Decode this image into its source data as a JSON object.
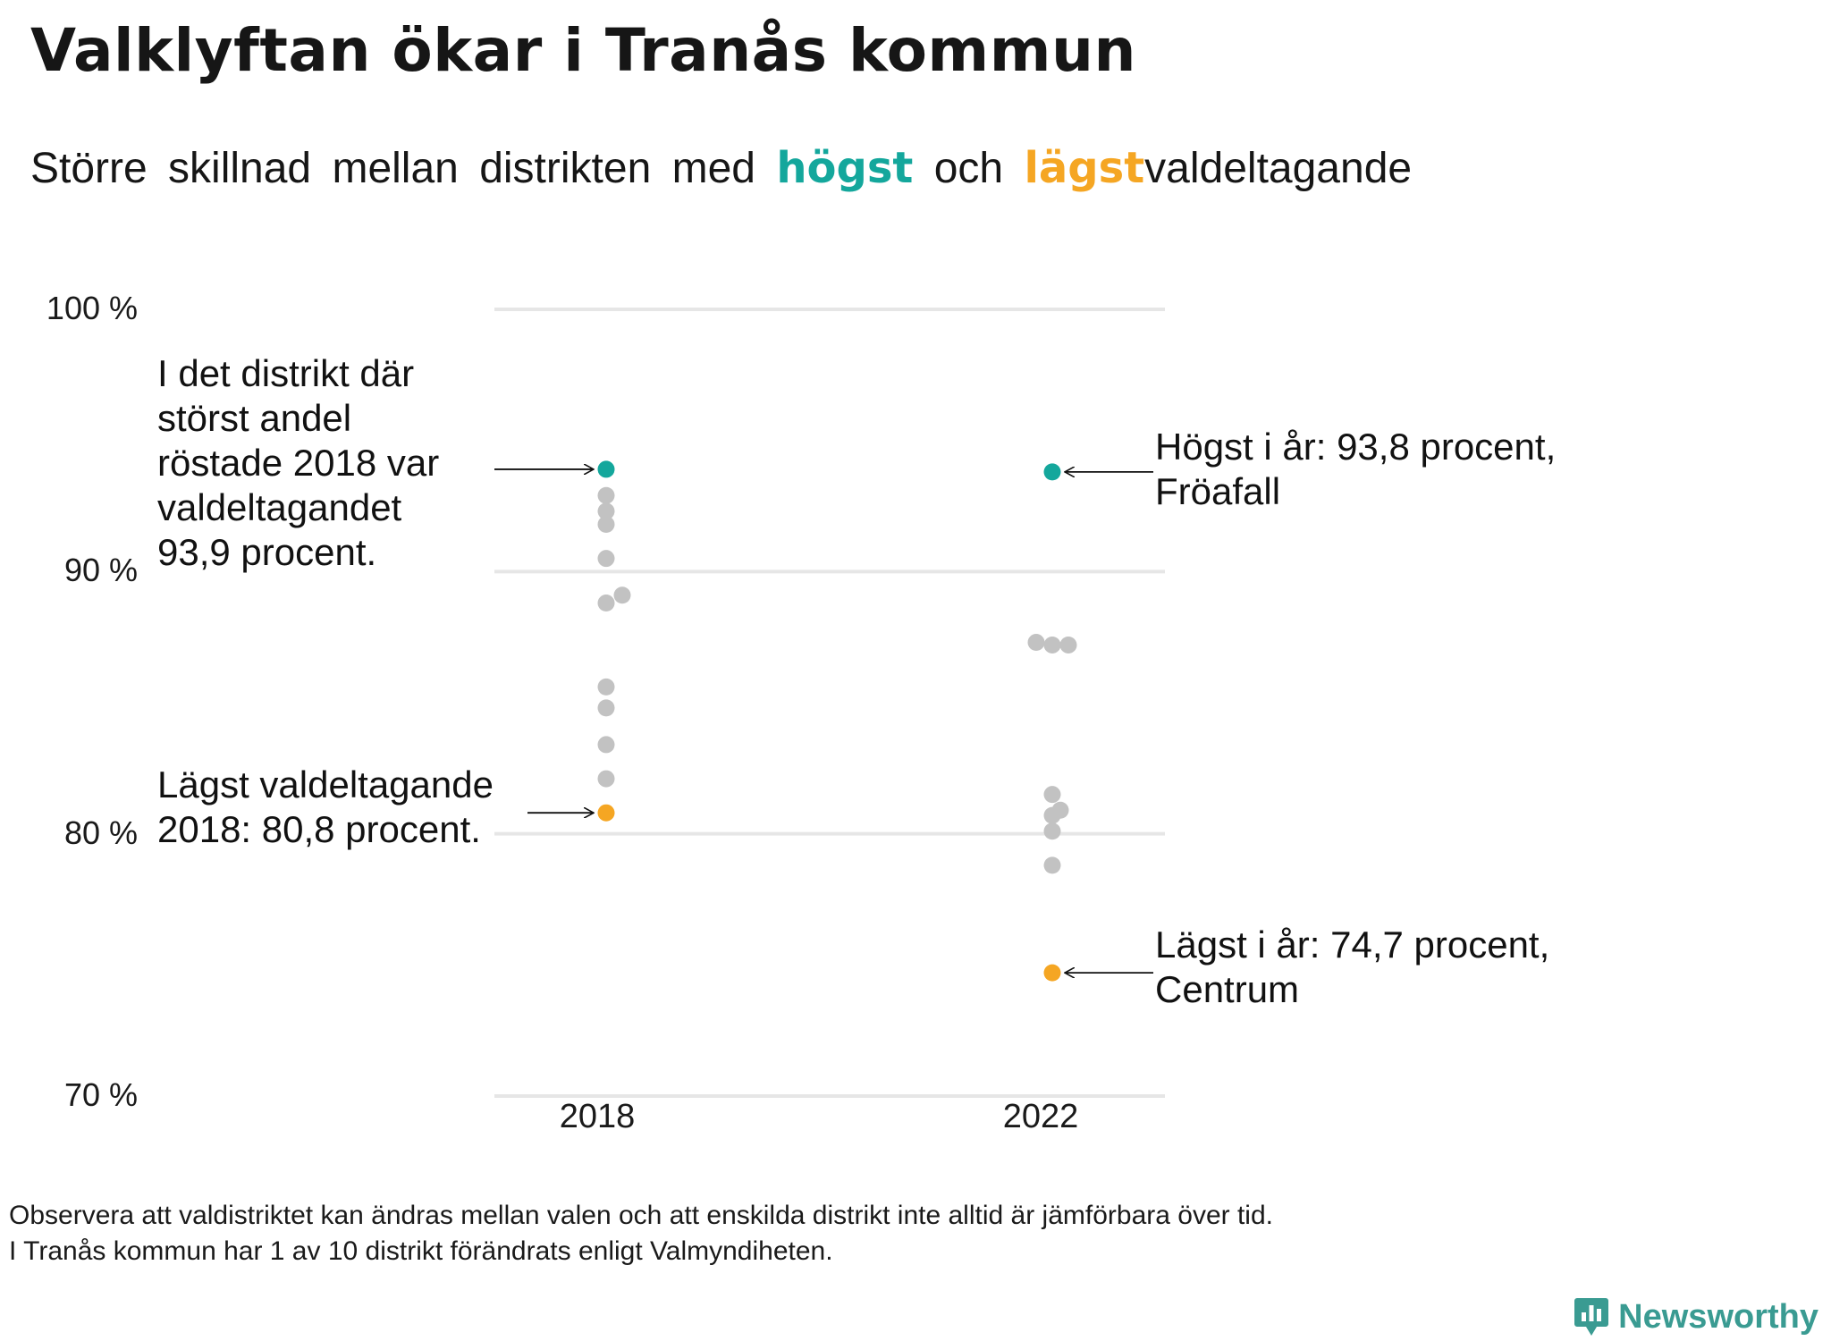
{
  "header": {
    "title": "Valklyftan ökar i Tranås kommun",
    "subtitle_pre": "Större skillnad mellan distrikten med",
    "subtitle_high": "högst",
    "subtitle_mid": "och",
    "subtitle_low": "lägst",
    "subtitle_post": "valdeltagande"
  },
  "colors": {
    "high": "#14a79c",
    "low": "#f5a623",
    "other": "#c2c2c2",
    "grid": "#e6e6e6",
    "brand": "#3a9b92"
  },
  "chart_data": {
    "type": "scatter",
    "title": "Valklyftan ökar i Tranås kommun",
    "xlabel": "",
    "ylabel": "",
    "categories": [
      "2018",
      "2022"
    ],
    "ylim": [
      70,
      100
    ],
    "y_ticks": [
      {
        "value": 100,
        "label": "100 %"
      },
      {
        "value": 90,
        "label": "90 %"
      },
      {
        "value": 80,
        "label": "80 %"
      },
      {
        "value": 70,
        "label": "70 %"
      }
    ],
    "series": [
      {
        "name": "2018",
        "points": [
          {
            "value": 93.9,
            "kind": "high"
          },
          {
            "value": 92.9,
            "kind": "other"
          },
          {
            "value": 92.3,
            "kind": "other"
          },
          {
            "value": 91.8,
            "kind": "other"
          },
          {
            "value": 90.5,
            "kind": "other"
          },
          {
            "value": 89.1,
            "kind": "other",
            "offset": 1
          },
          {
            "value": 88.8,
            "kind": "other"
          },
          {
            "value": 85.6,
            "kind": "other"
          },
          {
            "value": 84.8,
            "kind": "other"
          },
          {
            "value": 83.4,
            "kind": "other"
          },
          {
            "value": 82.1,
            "kind": "other"
          },
          {
            "value": 80.8,
            "kind": "low"
          }
        ]
      },
      {
        "name": "2022",
        "points": [
          {
            "value": 93.8,
            "kind": "high"
          },
          {
            "value": 87.3,
            "kind": "other",
            "offset": -1
          },
          {
            "value": 87.2,
            "kind": "other"
          },
          {
            "value": 87.2,
            "kind": "other",
            "offset": 1
          },
          {
            "value": 81.5,
            "kind": "other"
          },
          {
            "value": 80.9,
            "kind": "other",
            "offset": 0.5
          },
          {
            "value": 80.7,
            "kind": "other"
          },
          {
            "value": 80.1,
            "kind": "other"
          },
          {
            "value": 78.8,
            "kind": "other"
          },
          {
            "value": 74.7,
            "kind": "low"
          }
        ]
      }
    ],
    "annotations": {
      "high_2018": "I det distrikt där\nstörst andel\nröstade 2018 var\nvaldeltagandet\n93,9 procent.",
      "low_2018": "Lägst valdeltagande\n2018: 80,8 procent.",
      "high_2022": "Högst i år: 93,8 procent,\nFröafall",
      "low_2022": "Lägst i år: 74,7 procent,\nCentrum"
    }
  },
  "footer": {
    "note_line1": "Observera att valdistriktet kan ändras mellan valen och att enskilda distrikt inte alltid är jämförbara över tid.",
    "note_line2": "I Tranås kommun har 1 av 10 distrikt förändrats enligt Valmyndiheten.",
    "brand": "Newsworthy",
    "brand_icon": "newsworthy-logo-icon"
  }
}
